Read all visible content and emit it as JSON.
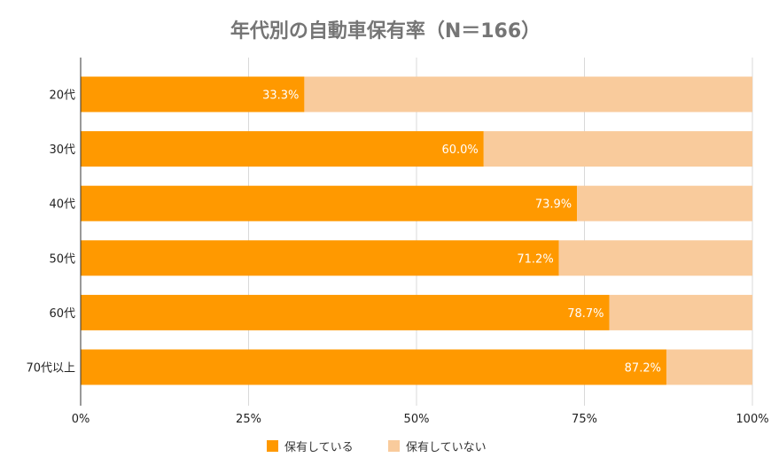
{
  "chart_data": {
    "type": "bar",
    "orientation": "horizontal",
    "stacked": "percent",
    "title": "年代別の自動車保有率（N＝166）",
    "categories": [
      "20代",
      "30代",
      "40代",
      "50代",
      "60代",
      "70代以上"
    ],
    "series": [
      {
        "name": "保有している",
        "color": "#ff9900",
        "values": [
          33.3,
          60.0,
          73.9,
          71.2,
          78.7,
          87.2
        ]
      },
      {
        "name": "保有していない",
        "color": "#f9cb9c",
        "values": [
          66.7,
          40.0,
          26.1,
          28.8,
          21.3,
          12.8
        ]
      }
    ],
    "data_labels": [
      "33.3%",
      "60.0%",
      "73.9%",
      "71.2%",
      "78.7%",
      "87.2%"
    ],
    "xlim": [
      0,
      100
    ],
    "x_ticks": [
      "0%",
      "25%",
      "50%",
      "75%",
      "100%"
    ],
    "grid": true,
    "legend_position": "bottom"
  }
}
